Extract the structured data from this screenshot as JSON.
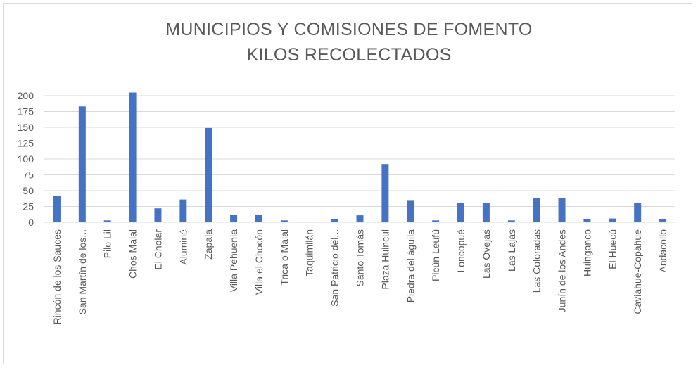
{
  "chart_data": {
    "type": "bar",
    "title_lines": [
      "MUNICIPIOS Y COMISIONES DE FOMENTO",
      "KILOS RECOLECTADOS"
    ],
    "categories": [
      "Rincón de los Sauces",
      "San Martín de los...",
      "Pilo Lil",
      "Chos Malal",
      "El Cholar",
      "Aluminé",
      "Zapala",
      "Villa Pehuenia",
      "Villa el Chocón",
      "Trica o Malal",
      "Taquimilán",
      "San Patricio del...",
      "Santo Tomás",
      "Plaza Huincul",
      "Piedra del águila",
      "Picún Leufú",
      "Loncopué",
      "Las Ovejas",
      "Las Lajas",
      "Las Coloradas",
      "Junín de los Andes",
      "Huinganco",
      "El Huecú",
      "Caviahue-Copahue",
      "Andacollo"
    ],
    "values": [
      42,
      183,
      3,
      205,
      22,
      36,
      149,
      12,
      12,
      3,
      0,
      5,
      11,
      92,
      34,
      3,
      30,
      30,
      3,
      38,
      38,
      5,
      6,
      30,
      5
    ],
    "yticks": [
      0,
      25,
      50,
      75,
      100,
      125,
      150,
      175,
      200
    ],
    "ylim": [
      0,
      200
    ],
    "grid": true,
    "bar_color": "#4472c4",
    "gridline_color": "#d9d9d9",
    "text_color": "#595959"
  }
}
